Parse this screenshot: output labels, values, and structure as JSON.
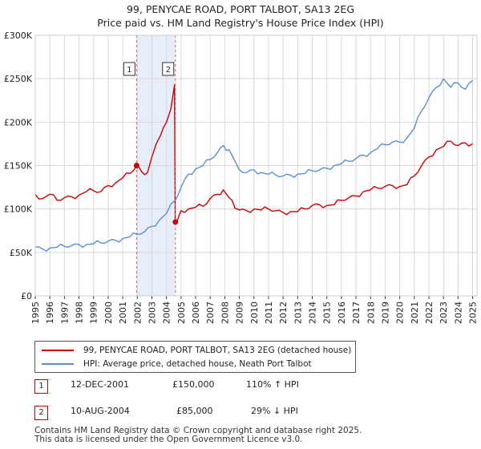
{
  "title": "99, PENYCAE ROAD, PORT TALBOT, SA13 2EG",
  "subtitle": "Price paid vs. HM Land Registry's House Price Index (HPI)",
  "legend": {
    "property": "99, PENYCAE ROAD, PORT TALBOT, SA13 2EG (detached house)",
    "hpi": "HPI: Average price, detached house, Neath Port Talbot"
  },
  "transactions": [
    {
      "num": "1",
      "date": "12-DEC-2001",
      "price": "£150,000",
      "hpi_change": "110% ↑ HPI"
    },
    {
      "num": "2",
      "date": "10-AUG-2004",
      "price": "£85,000",
      "hpi_change": "29% ↓ HPI"
    }
  ],
  "footer": {
    "line1": "Contains HM Land Registry data © Crown copyright and database right 2025.",
    "line2": "This data is licensed under the Open Government Licence v3.0."
  },
  "colors": {
    "property": "#cc0000",
    "hpi": "#5b8fd0",
    "band": "#dde6f7",
    "grid": "#d8d8d8"
  },
  "chart_data": {
    "type": "line",
    "title": "99, PENYCAE ROAD, PORT TALBOT, SA13 2EG",
    "subtitle": "Price paid vs. HM Land Registry's House Price Index (HPI)",
    "xlabel": "",
    "ylabel": "",
    "xlim": [
      1995,
      2025.3
    ],
    "ylim": [
      0,
      300000
    ],
    "grid": true,
    "y_ticks": [
      0,
      50000,
      100000,
      150000,
      200000,
      250000,
      300000
    ],
    "y_tick_labels": [
      "£0",
      "£50K",
      "£100K",
      "£150K",
      "£200K",
      "£250K",
      "£300K"
    ],
    "x_ticks": [
      "1995",
      "1996",
      "1997",
      "1998",
      "1999",
      "2000",
      "2001",
      "2002",
      "2003",
      "2004",
      "2005",
      "2006",
      "2007",
      "2008",
      "2009",
      "2010",
      "2011",
      "2012",
      "2013",
      "2014",
      "2015",
      "2016",
      "2017",
      "2018",
      "2019",
      "2020",
      "2021",
      "2022",
      "2023",
      "2024",
      "2025"
    ],
    "legend_position": "below",
    "series": [
      {
        "name": "99, PENYCAE ROAD, PORT TALBOT, SA13 2EG (detached house)",
        "color": "#cc0000",
        "x": [
          1995.0,
          1995.5,
          1996.0,
          1996.5,
          1997.0,
          1997.5,
          1998.0,
          1998.5,
          1999.0,
          1999.5,
          2000.0,
          2000.5,
          2001.0,
          2001.5,
          2001.95,
          2002.3,
          2002.7,
          2003.0,
          2003.3,
          2003.6,
          2004.0,
          2004.3,
          2004.55,
          2004.6,
          2004.7,
          2005.0,
          2005.5,
          2006.0,
          2006.5,
          2007.0,
          2007.5,
          2007.9,
          2008.3,
          2008.7,
          2009.0,
          2009.5,
          2010.0,
          2010.5,
          2011.0,
          2011.5,
          2012.0,
          2012.5,
          2013.0,
          2013.5,
          2014.0,
          2014.5,
          2015.0,
          2015.5,
          2016.0,
          2016.5,
          2017.0,
          2017.5,
          2018.0,
          2018.5,
          2019.0,
          2019.5,
          2020.0,
          2020.5,
          2021.0,
          2021.5,
          2022.0,
          2022.5,
          2023.0,
          2023.5,
          2024.0,
          2024.5,
          2025.0
        ],
        "y": [
          117000,
          112000,
          117000,
          110000,
          113000,
          114000,
          116000,
          120000,
          121000,
          120000,
          127000,
          130000,
          136000,
          141000,
          150000,
          143000,
          142000,
          160000,
          175000,
          185000,
          200000,
          215000,
          243000,
          85000,
          85000,
          98000,
          100000,
          102000,
          103000,
          112000,
          117000,
          122000,
          113000,
          101000,
          99000,
          98000,
          100000,
          99000,
          100000,
          98000,
          96000,
          97000,
          97000,
          100000,
          104000,
          105000,
          104000,
          105000,
          110000,
          113000,
          115000,
          120000,
          122000,
          124000,
          126000,
          127000,
          126000,
          128000,
          138000,
          150000,
          160000,
          168000,
          172000,
          178000,
          173000,
          176000,
          175000
        ]
      },
      {
        "name": "HPI: Average price, detached house, Neath Port Talbot",
        "color": "#5b8fd0",
        "x": [
          1995.0,
          1995.5,
          1996.0,
          1996.5,
          1997.0,
          1997.5,
          1998.0,
          1998.5,
          1999.0,
          1999.5,
          2000.0,
          2000.5,
          2001.0,
          2001.5,
          2001.95,
          2002.5,
          2003.0,
          2003.5,
          2004.0,
          2004.6,
          2005.0,
          2005.5,
          2006.0,
          2006.5,
          2007.0,
          2007.5,
          2007.9,
          2008.3,
          2008.7,
          2009.0,
          2009.5,
          2010.0,
          2010.5,
          2011.0,
          2011.5,
          2012.0,
          2012.5,
          2013.0,
          2013.5,
          2014.0,
          2014.5,
          2015.0,
          2015.5,
          2016.0,
          2016.5,
          2017.0,
          2017.5,
          2018.0,
          2018.5,
          2019.0,
          2019.5,
          2020.0,
          2020.5,
          2021.0,
          2021.5,
          2022.0,
          2022.5,
          2023.0,
          2023.5,
          2024.0,
          2024.5,
          2025.0
        ],
        "y": [
          56000,
          54000,
          55000,
          56000,
          57000,
          58000,
          59000,
          59000,
          60000,
          61000,
          63000,
          64000,
          66000,
          68000,
          71000,
          74000,
          80000,
          87000,
          95000,
          110000,
          125000,
          140000,
          146000,
          150000,
          157000,
          165000,
          173000,
          168000,
          155000,
          145000,
          142000,
          145000,
          142000,
          140000,
          139000,
          138000,
          139000,
          140000,
          141000,
          144000,
          145000,
          147000,
          150000,
          152000,
          155000,
          158000,
          162000,
          165000,
          170000,
          174000,
          177000,
          177000,
          182000,
          193000,
          213000,
          228000,
          240000,
          250000,
          240000,
          245000,
          238000,
          248000
        ]
      }
    ],
    "vertical_markers": [
      {
        "label": "1",
        "x": 2001.95,
        "value": 150000
      },
      {
        "label": "2",
        "x": 2004.61,
        "value": 85000
      }
    ],
    "shaded_region": [
      2001.95,
      2004.61
    ]
  }
}
